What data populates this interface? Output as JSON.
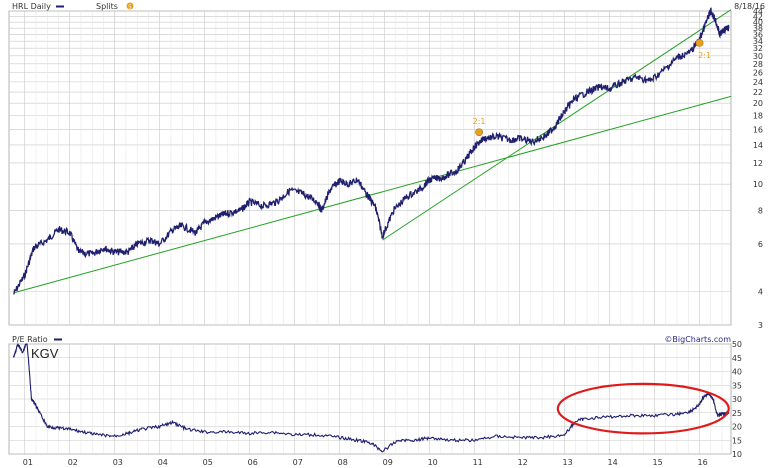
{
  "header": {
    "symbol_label": "HRL Daily",
    "splits_label": "Splits",
    "splits_marker": "S",
    "date": "8/18/16",
    "pe_label": "P/E Ratio",
    "brand": "©BigCharts.com",
    "annotation": "KGV"
  },
  "colors": {
    "price_line": "#1f1f6e",
    "trendline": "#22a022",
    "grid": "#c8c8c8",
    "split_marker": "#e8a020",
    "highlight_ellipse": "#e01a1a"
  },
  "chart_data": [
    {
      "type": "line",
      "scale": "log",
      "grid": true,
      "xlim": [
        2000.65,
        2016.7
      ],
      "ylim": [
        3,
        44
      ],
      "yticks": [
        3,
        4,
        6,
        8,
        10,
        12,
        14,
        16,
        18,
        20,
        22,
        24,
        26,
        28,
        30,
        32,
        34,
        36,
        38,
        40,
        42,
        44
      ],
      "series": [
        {
          "x": [
            2000.75,
            2001.0,
            2001.2,
            2001.5,
            2001.75,
            2002.0,
            2002.2,
            2002.5,
            2002.75,
            2003.0,
            2003.3,
            2003.5,
            2003.8,
            2004.0,
            2004.3,
            2004.5,
            2004.8,
            2005.0,
            2005.3,
            2005.5,
            2005.8,
            2006.0,
            2006.3,
            2006.6,
            2006.9,
            2007.2,
            2007.5,
            2007.6,
            2007.8,
            2008.0,
            2008.2,
            2008.4,
            2008.6,
            2008.8,
            2008.95,
            2009.2,
            2009.5,
            2009.8,
            2010.0,
            2010.3,
            2010.6,
            2010.8,
            2011.0,
            2011.2,
            2011.5,
            2011.8,
            2012.0,
            2012.3,
            2012.6,
            2012.8,
            2013.0,
            2013.2,
            2013.5,
            2013.8,
            2014.0,
            2014.3,
            2014.6,
            2014.9,
            2015.2,
            2015.5,
            2015.8,
            2016.0,
            2016.15,
            2016.25,
            2016.35,
            2016.45,
            2016.55,
            2016.65
          ],
          "values": [
            3.9,
            4.6,
            5.8,
            6.2,
            6.8,
            6.6,
            5.6,
            5.5,
            5.8,
            5.6,
            5.6,
            6.0,
            6.2,
            6.0,
            6.8,
            7.0,
            6.6,
            7.2,
            7.6,
            7.8,
            8.0,
            8.6,
            8.3,
            8.6,
            9.5,
            9.2,
            8.6,
            8.0,
            9.6,
            10.3,
            10.0,
            10.4,
            9.2,
            8.2,
            6.4,
            8.0,
            9.0,
            9.6,
            10.4,
            10.6,
            11.2,
            12.3,
            13.8,
            14.8,
            15.0,
            14.6,
            14.8,
            14.4,
            15.2,
            16.5,
            18.6,
            20.6,
            22.0,
            23.0,
            22.6,
            24.0,
            25.0,
            24.2,
            26.5,
            29.5,
            31.0,
            34.5,
            40.0,
            44.0,
            41.0,
            36.0,
            37.5,
            38.0
          ]
        }
      ],
      "trendlines": [
        {
          "from": [
            2000.75,
            3.95
          ],
          "to": [
            2016.7,
            21.2
          ]
        },
        {
          "from": [
            2008.95,
            6.2
          ],
          "to": [
            2016.7,
            44.5
          ]
        }
      ],
      "splits": [
        {
          "x": 2011.1,
          "value": 15.6,
          "label": "2:1"
        },
        {
          "x": 2016.0,
          "value": 33.5,
          "label": "2:1"
        }
      ]
    },
    {
      "type": "line",
      "grid": true,
      "xlim": [
        2000.65,
        2016.7
      ],
      "ylim": [
        10,
        50
      ],
      "yticks": [
        10,
        15,
        20,
        25,
        30,
        35,
        40,
        45,
        50
      ],
      "xticks": [
        "01",
        "02",
        "03",
        "04",
        "05",
        "06",
        "07",
        "08",
        "09",
        "10",
        "11",
        "12",
        "13",
        "14",
        "15",
        "16"
      ],
      "series": [
        {
          "x": [
            2000.75,
            2000.85,
            2000.95,
            2001.05,
            2001.15,
            2001.2,
            2001.3,
            2001.5,
            2001.7,
            2002.0,
            2002.3,
            2002.6,
            2003.0,
            2003.3,
            2003.6,
            2004.0,
            2004.3,
            2004.6,
            2005.0,
            2005.5,
            2006.0,
            2006.5,
            2007.0,
            2007.5,
            2008.0,
            2008.4,
            2008.7,
            2008.95,
            2009.3,
            2009.7,
            2010.0,
            2010.5,
            2011.0,
            2011.5,
            2012.0,
            2012.5,
            2013.0,
            2013.25,
            2013.5,
            2014.0,
            2014.5,
            2015.0,
            2015.5,
            2015.8,
            2016.0,
            2016.1,
            2016.2,
            2016.3,
            2016.4,
            2016.5,
            2016.6,
            2016.65
          ],
          "values": [
            45,
            50,
            47,
            51,
            30,
            29,
            26,
            20,
            19.5,
            19,
            18,
            17,
            16.5,
            17.5,
            19,
            20,
            21.5,
            19,
            18,
            18,
            17.5,
            18,
            17,
            17,
            16,
            15,
            14,
            11,
            15,
            15,
            16,
            15,
            15,
            16.5,
            16,
            16,
            17,
            22,
            23,
            23.5,
            24,
            24,
            24.5,
            25.5,
            28,
            31,
            32,
            30,
            24,
            24.5,
            25,
            25
          ]
        }
      ],
      "highlight": {
        "shape": "ellipse",
        "x_range": [
          2012.85,
          2016.65
        ],
        "y_range": [
          17.5,
          35.5
        ]
      }
    }
  ]
}
